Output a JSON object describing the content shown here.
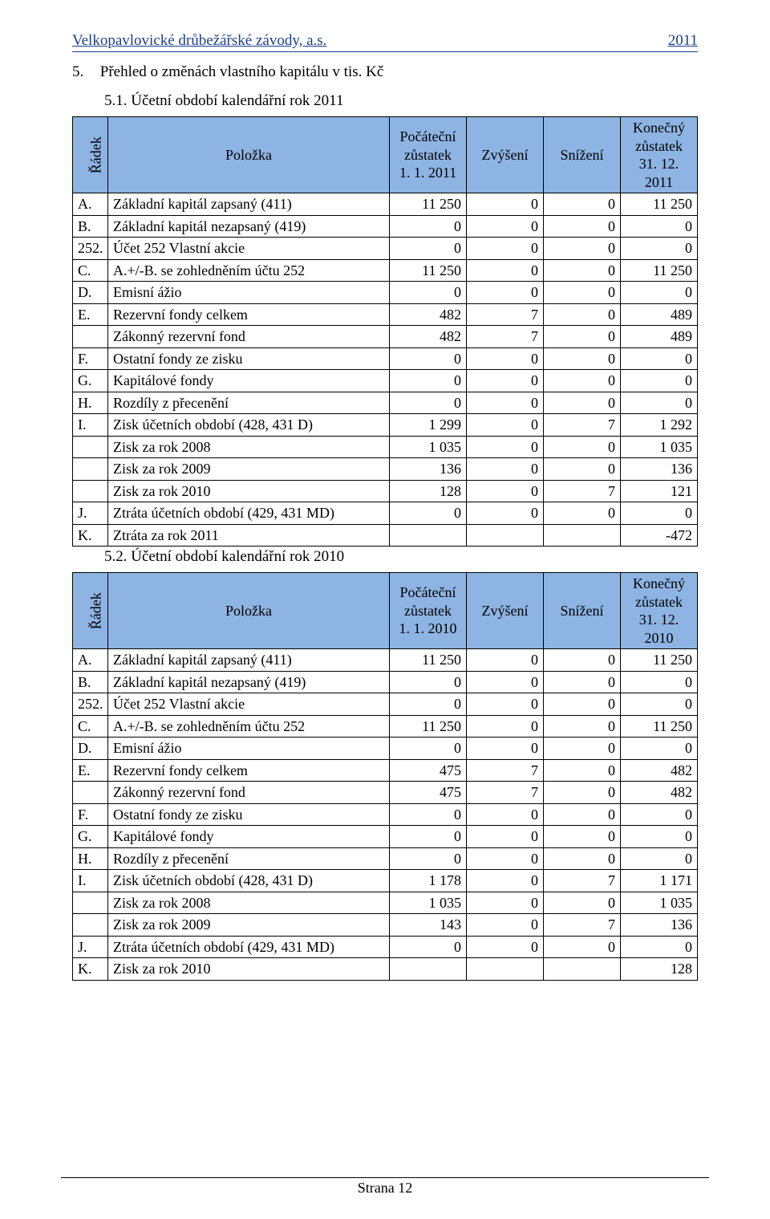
{
  "header": {
    "company": "Velkopavlovické drůbežářské závody, a.s.",
    "year": "2011"
  },
  "section": {
    "number": "5.",
    "title": "Přehled o změnách vlastního kapitálu v tis. Kč"
  },
  "tables": [
    {
      "subtitle_num": "5.1.",
      "subtitle_text": "Účetní období kalendářní rok 2011",
      "headers": {
        "radek": "Řádek",
        "polozka": "Položka",
        "pocatecni_l1": "Počáteční",
        "pocatecni_l2": "zůstatek",
        "pocatecni_l3": "1. 1. 2011",
        "zvyseni": "Zvýšení",
        "snizeni": "Snížení",
        "konecny_l1": "Konečný",
        "konecny_l2": "zůstatek",
        "konecny_l3": "31. 12. 2011"
      },
      "rows": [
        {
          "id": "A.",
          "label": "Základní kapitál zapsaný (411)",
          "c1": "11 250",
          "c2": "0",
          "c3": "0",
          "c4": "11 250"
        },
        {
          "id": "B.",
          "label": "Základní kapitál nezapsaný (419)",
          "c1": "0",
          "c2": "0",
          "c3": "0",
          "c4": "0"
        },
        {
          "id": "252.",
          "label": "Účet 252 Vlastní akcie",
          "c1": "0",
          "c2": "0",
          "c3": "0",
          "c4": "0"
        },
        {
          "id": "C.",
          "label": "A.+/-B. se zohledněním účtu 252",
          "c1": "11 250",
          "c2": "0",
          "c3": "0",
          "c4": "11 250"
        },
        {
          "id": "D.",
          "label": "Emisní ážio",
          "c1": "0",
          "c2": "0",
          "c3": "0",
          "c4": "0"
        },
        {
          "id": "E.",
          "label": "Rezervní fondy celkem",
          "c1": "482",
          "c2": "7",
          "c3": "0",
          "c4": "489"
        },
        {
          "id": "",
          "label": "Zákonný rezervní fond",
          "c1": "482",
          "c2": "7",
          "c3": "0",
          "c4": "489"
        },
        {
          "id": "F.",
          "label": "Ostatní fondy ze zisku",
          "c1": "0",
          "c2": "0",
          "c3": "0",
          "c4": "0"
        },
        {
          "id": "G.",
          "label": "Kapitálové fondy",
          "c1": "0",
          "c2": "0",
          "c3": "0",
          "c4": "0"
        },
        {
          "id": "H.",
          "label": "Rozdíly z přecenění",
          "c1": "0",
          "c2": "0",
          "c3": "0",
          "c4": "0"
        },
        {
          "id": "I.",
          "label": "Zisk účetních období (428, 431 D)",
          "c1": "1 299",
          "c2": "0",
          "c3": "7",
          "c4": "1 292"
        },
        {
          "id": "",
          "label": "Zisk za rok 2008",
          "c1": "1 035",
          "c2": "0",
          "c3": "0",
          "c4": "1 035"
        },
        {
          "id": "",
          "label": "Zisk za rok 2009",
          "c1": "136",
          "c2": "0",
          "c3": "0",
          "c4": "136"
        },
        {
          "id": "",
          "label": "Zisk za rok 2010",
          "c1": "128",
          "c2": "0",
          "c3": "7",
          "c4": "121"
        },
        {
          "id": "J.",
          "label": "Ztráta účetních období (429, 431 MD)",
          "c1": "0",
          "c2": "0",
          "c3": "0",
          "c4": "0"
        },
        {
          "id": "K.",
          "label": "Ztráta za rok 2011",
          "c1": "",
          "c2": "",
          "c3": "",
          "c4": "-472"
        }
      ]
    },
    {
      "subtitle_num": "5.2.",
      "subtitle_text": "Účetní období kalendářní rok 2010",
      "headers": {
        "radek": "Řádek",
        "polozka": "Položka",
        "pocatecni_l1": "Počáteční",
        "pocatecni_l2": "zůstatek",
        "pocatecni_l3": "1. 1. 2010",
        "zvyseni": "Zvýšení",
        "snizeni": "Snížení",
        "konecny_l1": "Konečný",
        "konecny_l2": "zůstatek",
        "konecny_l3": "31. 12. 2010"
      },
      "rows": [
        {
          "id": "A.",
          "label": "Základní kapitál zapsaný (411)",
          "c1": "11 250",
          "c2": "0",
          "c3": "0",
          "c4": "11 250"
        },
        {
          "id": "B.",
          "label": "Základní kapitál nezapsaný (419)",
          "c1": "0",
          "c2": "0",
          "c3": "0",
          "c4": "0"
        },
        {
          "id": "252.",
          "label": "Účet 252 Vlastní akcie",
          "c1": "0",
          "c2": "0",
          "c3": "0",
          "c4": "0"
        },
        {
          "id": "C.",
          "label": "A.+/-B. se zohledněním účtu 252",
          "c1": "11 250",
          "c2": "0",
          "c3": "0",
          "c4": "11 250"
        },
        {
          "id": "D.",
          "label": "Emisní ážio",
          "c1": "0",
          "c2": "0",
          "c3": "0",
          "c4": "0"
        },
        {
          "id": "E.",
          "label": "Rezervní fondy celkem",
          "c1": "475",
          "c2": "7",
          "c3": "0",
          "c4": "482"
        },
        {
          "id": "",
          "label": "Zákonný rezervní fond",
          "c1": "475",
          "c2": "7",
          "c3": "0",
          "c4": "482"
        },
        {
          "id": "F.",
          "label": "Ostatní fondy ze zisku",
          "c1": "0",
          "c2": "0",
          "c3": "0",
          "c4": "0"
        },
        {
          "id": "G.",
          "label": "Kapitálové fondy",
          "c1": "0",
          "c2": "0",
          "c3": "0",
          "c4": "0"
        },
        {
          "id": "H.",
          "label": "Rozdíly z přecenění",
          "c1": "0",
          "c2": "0",
          "c3": "0",
          "c4": "0"
        },
        {
          "id": "I.",
          "label": "Zisk účetních období (428, 431 D)",
          "c1": "1 178",
          "c2": "0",
          "c3": "7",
          "c4": "1 171"
        },
        {
          "id": "",
          "label": "Zisk za rok 2008",
          "c1": "1 035",
          "c2": "0",
          "c3": "0",
          "c4": "1 035"
        },
        {
          "id": "",
          "label": "Zisk za rok 2009",
          "c1": "143",
          "c2": "0",
          "c3": "7",
          "c4": "136"
        },
        {
          "id": "J.",
          "label": "Ztráta účetních období (429, 431 MD)",
          "c1": "0",
          "c2": "0",
          "c3": "0",
          "c4": "0"
        },
        {
          "id": "K.",
          "label": "Zisk za rok 2010",
          "c1": "",
          "c2": "",
          "c3": "",
          "c4": "128"
        }
      ]
    }
  ],
  "footer": {
    "text": "Strana 12"
  },
  "colors": {
    "header_blue": "#1a3f8f",
    "table_header_bg": "#8db4e2",
    "border": "#000000",
    "background": "#ffffff"
  }
}
